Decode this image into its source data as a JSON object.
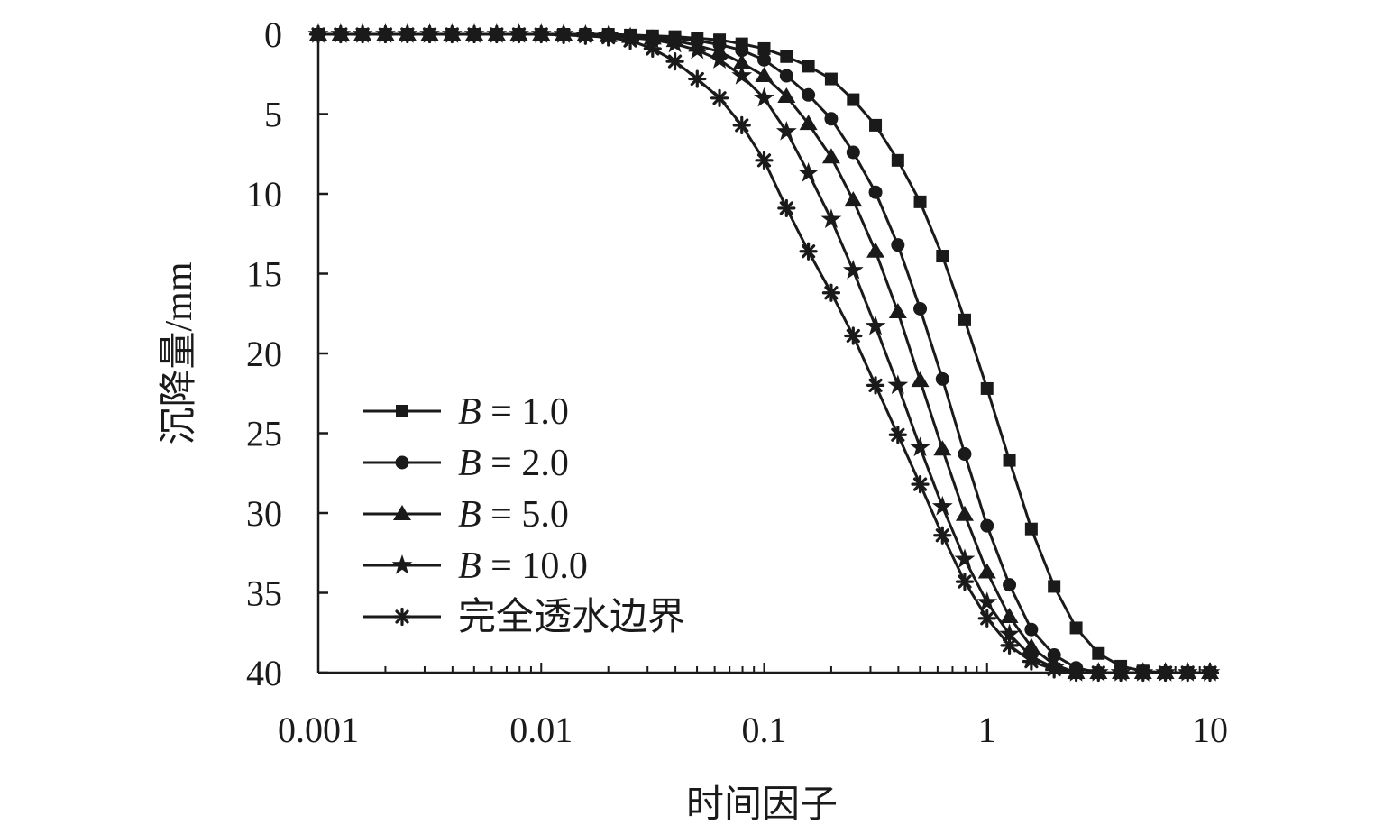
{
  "chart_data": {
    "type": "line",
    "xlabel": "时间因子",
    "ylabel": "沉降量/mm",
    "x_scale": "log",
    "xlim": [
      0.001,
      10
    ],
    "ylim": [
      0,
      40
    ],
    "y_inverted": true,
    "x_ticks": [
      0.001,
      0.01,
      0.1,
      1,
      10
    ],
    "x_tick_labels": [
      "0.001",
      "0.01",
      "0.1",
      "1",
      "10"
    ],
    "y_ticks": [
      0,
      5,
      10,
      15,
      20,
      25,
      30,
      35,
      40
    ],
    "y_tick_labels": [
      "0",
      "5",
      "10",
      "15",
      "20",
      "25",
      "30",
      "35",
      "40"
    ],
    "grid": false,
    "legend_position": "bottom-left",
    "series": [
      {
        "name": "B = 1.0",
        "marker": "square",
        "x": [
          0.001,
          0.00126,
          0.00158,
          0.002,
          0.00251,
          0.00316,
          0.00398,
          0.00501,
          0.00631,
          0.00794,
          0.01,
          0.0126,
          0.0158,
          0.02,
          0.0251,
          0.0316,
          0.0398,
          0.0501,
          0.0631,
          0.0794,
          0.1,
          0.126,
          0.158,
          0.2,
          0.251,
          0.316,
          0.398,
          0.501,
          0.631,
          0.794,
          1.0,
          1.26,
          1.58,
          2.0,
          2.51,
          3.16,
          3.98,
          5.01,
          6.31,
          7.94,
          10
        ],
        "y": [
          0,
          0,
          0,
          0,
          0,
          0,
          0,
          0,
          0,
          0,
          0,
          0,
          0,
          0,
          0.05,
          0.1,
          0.15,
          0.25,
          0.35,
          0.6,
          0.9,
          1.4,
          2.0,
          2.8,
          4.1,
          5.7,
          7.9,
          10.5,
          13.9,
          17.9,
          22.2,
          26.7,
          31.0,
          34.6,
          37.2,
          38.8,
          39.6,
          39.9,
          40,
          40,
          40
        ]
      },
      {
        "name": "B = 2.0",
        "marker": "circle",
        "x": [
          0.001,
          0.00126,
          0.00158,
          0.002,
          0.00251,
          0.00316,
          0.00398,
          0.00501,
          0.00631,
          0.00794,
          0.01,
          0.0126,
          0.0158,
          0.02,
          0.0251,
          0.0316,
          0.0398,
          0.0501,
          0.0631,
          0.0794,
          0.1,
          0.126,
          0.158,
          0.2,
          0.251,
          0.316,
          0.398,
          0.501,
          0.631,
          0.794,
          1.0,
          1.26,
          1.58,
          2.0,
          2.51,
          3.16,
          3.98,
          5.01,
          6.31,
          7.94,
          10
        ],
        "y": [
          0,
          0,
          0,
          0,
          0,
          0,
          0,
          0,
          0,
          0,
          0,
          0,
          0,
          0.05,
          0.1,
          0.15,
          0.25,
          0.4,
          0.65,
          1.0,
          1.6,
          2.6,
          3.8,
          5.3,
          7.4,
          9.9,
          13.2,
          17.2,
          21.6,
          26.3,
          30.8,
          34.5,
          37.3,
          38.9,
          39.7,
          40,
          40,
          40,
          40,
          40,
          40
        ]
      },
      {
        "name": "B = 5.0",
        "marker": "triangle",
        "x": [
          0.001,
          0.00126,
          0.00158,
          0.002,
          0.00251,
          0.00316,
          0.00398,
          0.00501,
          0.00631,
          0.00794,
          0.01,
          0.0126,
          0.0158,
          0.02,
          0.0251,
          0.0316,
          0.0398,
          0.0501,
          0.0631,
          0.0794,
          0.1,
          0.126,
          0.158,
          0.2,
          0.251,
          0.316,
          0.398,
          0.501,
          0.631,
          0.794,
          1.0,
          1.26,
          1.58,
          2.0,
          2.51,
          3.16,
          3.98,
          5.01,
          6.31,
          7.94,
          10
        ],
        "y": [
          0,
          0,
          0,
          0,
          0,
          0,
          0,
          0,
          0,
          0,
          0,
          0,
          0.05,
          0.1,
          0.15,
          0.25,
          0.4,
          0.7,
          1.1,
          1.8,
          2.6,
          3.9,
          5.6,
          7.7,
          10.4,
          13.6,
          17.4,
          21.7,
          26.0,
          30.1,
          33.7,
          36.5,
          38.4,
          39.5,
          40,
          40,
          40,
          40,
          40,
          40,
          40
        ]
      },
      {
        "name": "B = 10.0",
        "marker": "star",
        "x": [
          0.001,
          0.00126,
          0.00158,
          0.002,
          0.00251,
          0.00316,
          0.00398,
          0.00501,
          0.00631,
          0.00794,
          0.01,
          0.0126,
          0.0158,
          0.02,
          0.0251,
          0.0316,
          0.0398,
          0.0501,
          0.0631,
          0.0794,
          0.1,
          0.126,
          0.158,
          0.2,
          0.251,
          0.316,
          0.398,
          0.501,
          0.631,
          0.794,
          1.0,
          1.26,
          1.58,
          2.0,
          2.51,
          3.16,
          3.98,
          5.01,
          6.31,
          7.94,
          10
        ],
        "y": [
          0,
          0,
          0,
          0,
          0,
          0,
          0,
          0,
          0,
          0,
          0,
          0,
          0.05,
          0.1,
          0.2,
          0.35,
          0.6,
          1.0,
          1.6,
          2.6,
          4.0,
          6.1,
          8.7,
          11.6,
          14.8,
          18.3,
          22.0,
          25.9,
          29.6,
          32.9,
          35.6,
          37.6,
          39.0,
          39.7,
          40,
          40,
          40,
          40,
          40,
          40,
          40
        ]
      },
      {
        "name": "完全透水边界",
        "marker": "asterisk",
        "x": [
          0.001,
          0.00126,
          0.00158,
          0.002,
          0.00251,
          0.00316,
          0.00398,
          0.00501,
          0.00631,
          0.00794,
          0.01,
          0.0126,
          0.0158,
          0.02,
          0.0251,
          0.0316,
          0.0398,
          0.0501,
          0.0631,
          0.0794,
          0.1,
          0.126,
          0.158,
          0.2,
          0.251,
          0.316,
          0.398,
          0.501,
          0.631,
          0.794,
          1.0,
          1.26,
          1.58,
          2.0,
          2.51,
          3.16,
          3.98,
          5.01,
          6.31,
          7.94,
          10
        ],
        "y": [
          0,
          0,
          0,
          0,
          0,
          0,
          0,
          0,
          0,
          0,
          0,
          0.05,
          0.1,
          0.2,
          0.4,
          0.9,
          1.7,
          2.8,
          4.0,
          5.7,
          7.9,
          10.9,
          13.6,
          16.2,
          18.9,
          22.0,
          25.1,
          28.2,
          31.4,
          34.3,
          36.6,
          38.3,
          39.3,
          39.8,
          40,
          40,
          40,
          40,
          40,
          40,
          40
        ]
      }
    ]
  }
}
